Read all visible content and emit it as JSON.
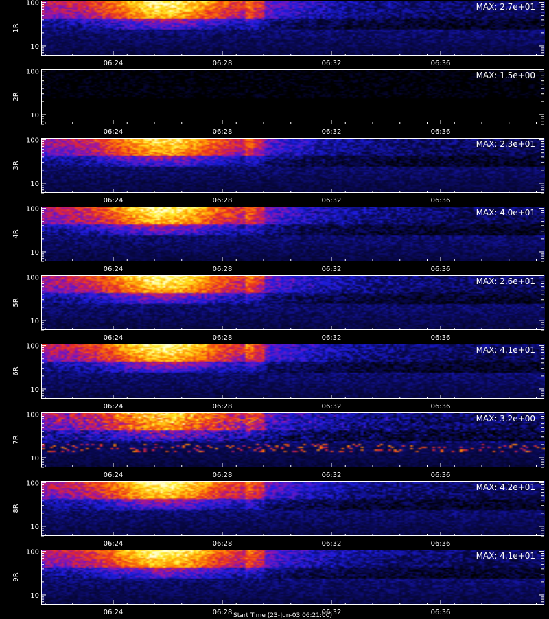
{
  "chart_data": {
    "type": "heatmap",
    "x_ticks": [
      "06:24",
      "06:28",
      "06:32",
      "06:36"
    ],
    "y_scale": "log",
    "y_ticks": [
      "10",
      "100"
    ],
    "panels": [
      {
        "label": "1R",
        "max_label": "MAX: 2.7e+01",
        "max": 27,
        "intensity": 1.0
      },
      {
        "label": "2R",
        "max_label": "MAX: 1.5e+00",
        "max": 1.5,
        "intensity": 0.0
      },
      {
        "label": "3R",
        "max_label": "MAX: 2.3e+01",
        "max": 23,
        "intensity": 0.95
      },
      {
        "label": "4R",
        "max_label": "MAX: 4.0e+01",
        "max": 40,
        "intensity": 1.0
      },
      {
        "label": "5R",
        "max_label": "MAX: 2.6e+01",
        "max": 26,
        "intensity": 1.0
      },
      {
        "label": "6R",
        "max_label": "MAX: 4.1e+01",
        "max": 41,
        "intensity": 1.0
      },
      {
        "label": "7R",
        "max_label": "MAX: 3.2e+00",
        "max": 3.2,
        "intensity": 0.9
      },
      {
        "label": "8R",
        "max_label": "MAX: 4.2e+01",
        "max": 42,
        "intensity": 1.0
      },
      {
        "label": "9R",
        "max_label": "MAX: 4.1e+01",
        "max": 41,
        "intensity": 1.0
      }
    ],
    "footer": "Start Time (23-Jun-03 06:21:00)"
  }
}
